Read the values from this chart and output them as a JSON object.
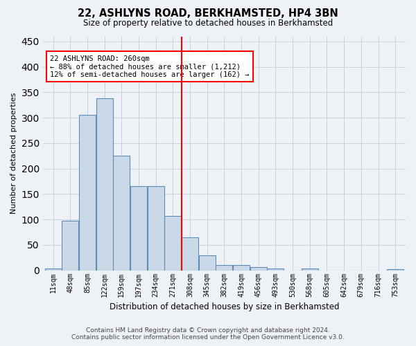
{
  "title": "22, ASHLYNS ROAD, BERKHAMSTED, HP4 3BN",
  "subtitle": "Size of property relative to detached houses in Berkhamsted",
  "xlabel": "Distribution of detached houses by size in Berkhamsted",
  "ylabel": "Number of detached properties",
  "footer_line1": "Contains HM Land Registry data © Crown copyright and database right 2024.",
  "footer_line2": "Contains public sector information licensed under the Open Government Licence v3.0.",
  "bar_labels": [
    "11sqm",
    "48sqm",
    "85sqm",
    "122sqm",
    "159sqm",
    "197sqm",
    "234sqm",
    "271sqm",
    "308sqm",
    "345sqm",
    "382sqm",
    "419sqm",
    "456sqm",
    "493sqm",
    "530sqm",
    "568sqm",
    "605sqm",
    "642sqm",
    "679sqm",
    "716sqm",
    "753sqm"
  ],
  "bar_values": [
    3,
    98,
    305,
    338,
    226,
    165,
    165,
    107,
    65,
    30,
    10,
    10,
    6,
    3,
    0,
    3,
    0,
    0,
    0,
    0,
    2
  ],
  "bar_color": "#c9d9e8",
  "bar_edge_color": "#5b8db8",
  "ylim": [
    0,
    460
  ],
  "yticks": [
    0,
    50,
    100,
    150,
    200,
    250,
    300,
    350,
    400,
    450
  ],
  "vline_x": 7.5,
  "annotation_text_line1": "22 ASHLYNS ROAD: 260sqm",
  "annotation_text_line2": "← 88% of detached houses are smaller (1,212)",
  "annotation_text_line3": "12% of semi-detached houses are larger (162) →",
  "annotation_box_color": "white",
  "annotation_box_edge_color": "red",
  "vline_color": "red",
  "grid_color": "#c8d0dc",
  "bg_color": "#eef2f7",
  "plot_bg_color": "#eef2f7"
}
